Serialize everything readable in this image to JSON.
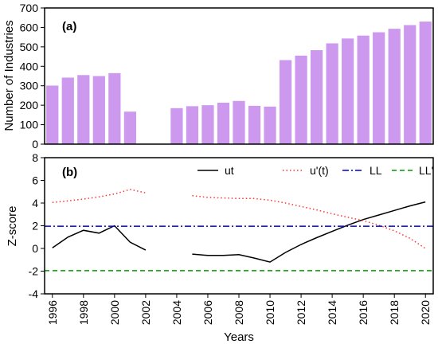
{
  "chart_data": [
    {
      "type": "bar",
      "panel_label": "(a)",
      "ylabel": "Number of Industries",
      "ylim": [
        0,
        700
      ],
      "yticks": [
        0,
        100,
        200,
        300,
        400,
        500,
        600,
        700
      ],
      "xlim": [
        1995.5,
        2020.5
      ],
      "bar_color": "#cc99ee",
      "x": [
        1996,
        1997,
        1998,
        1999,
        2000,
        2001,
        2002,
        2003,
        2004,
        2005,
        2006,
        2007,
        2008,
        2009,
        2010,
        2011,
        2012,
        2013,
        2014,
        2015,
        2016,
        2017,
        2018,
        2019,
        2020
      ],
      "values": [
        301,
        342,
        355,
        350,
        365,
        167,
        null,
        null,
        185,
        195,
        200,
        213,
        222,
        197,
        193,
        432,
        455,
        483,
        518,
        543,
        558,
        575,
        593,
        612,
        630
      ]
    },
    {
      "type": "line",
      "panel_label": "(b)",
      "ylabel": "Z-score",
      "xlabel": "Years",
      "ylim": [
        -4,
        8
      ],
      "yticks": [
        -4,
        -2,
        0,
        2,
        4,
        6,
        8
      ],
      "xlim": [
        1995.5,
        2020.5
      ],
      "xticks": [
        1996,
        1998,
        2000,
        2002,
        2004,
        2006,
        2008,
        2010,
        2012,
        2014,
        2016,
        2018,
        2020
      ],
      "series": [
        {
          "name": "ut",
          "color": "#000000",
          "style": "solid",
          "points": [
            [
              1996,
              0.05
            ],
            [
              1997,
              1.0
            ],
            [
              1998,
              1.6
            ],
            [
              1999,
              1.35
            ],
            [
              2000,
              2.0
            ],
            [
              2001,
              0.55
            ],
            [
              2002,
              -0.15
            ],
            null,
            [
              2005,
              -0.5
            ],
            [
              2006,
              -0.62
            ],
            [
              2007,
              -0.62
            ],
            [
              2008,
              -0.55
            ],
            [
              2009,
              -0.85
            ],
            [
              2010,
              -1.2
            ],
            [
              2011,
              -0.35
            ],
            [
              2012,
              0.35
            ],
            [
              2013,
              0.95
            ],
            [
              2014,
              1.5
            ],
            [
              2015,
              2.05
            ],
            [
              2016,
              2.55
            ],
            [
              2017,
              2.95
            ],
            [
              2018,
              3.35
            ],
            [
              2019,
              3.75
            ],
            [
              2020,
              4.1
            ]
          ]
        },
        {
          "name": "u'(t)",
          "color": "#ff3333",
          "style": "dotted",
          "points": [
            [
              1996,
              4.05
            ],
            [
              1997,
              4.2
            ],
            [
              1998,
              4.35
            ],
            [
              1999,
              4.55
            ],
            [
              2000,
              4.8
            ],
            [
              2001,
              5.2
            ],
            [
              2002,
              4.9
            ],
            null,
            [
              2005,
              4.65
            ],
            [
              2006,
              4.5
            ],
            [
              2007,
              4.45
            ],
            [
              2008,
              4.4
            ],
            [
              2009,
              4.4
            ],
            [
              2010,
              4.25
            ],
            [
              2011,
              4.0
            ],
            [
              2012,
              3.7
            ],
            [
              2013,
              3.4
            ],
            [
              2014,
              3.05
            ],
            [
              2015,
              2.75
            ],
            [
              2016,
              2.45
            ],
            [
              2017,
              2.05
            ],
            [
              2018,
              1.55
            ],
            [
              2019,
              0.9
            ],
            [
              2020,
              0.0
            ]
          ]
        },
        {
          "name": "LL",
          "color": "#0000cc",
          "style": "dashdot",
          "constant": 1.96
        },
        {
          "name": "LL'",
          "color": "#009900",
          "style": "dashed",
          "constant": -1.96
        }
      ],
      "legend_position": "top-right"
    }
  ]
}
